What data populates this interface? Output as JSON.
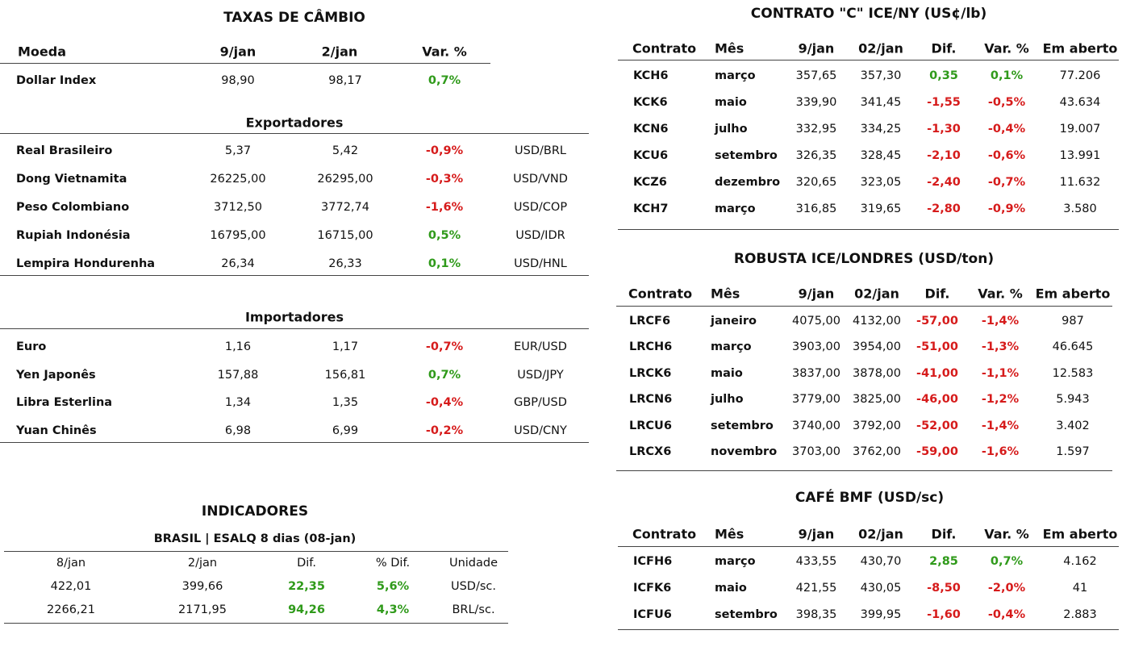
{
  "exchange_rates": {
    "title": "TAXAS DE CÂMBIO",
    "header": [
      "Moeda",
      "9/jan",
      "2/jan",
      "Var. %"
    ],
    "dollar_index": [
      "Dollar Index",
      "98,90",
      "98,17",
      "0,7%"
    ],
    "exporters": {
      "title": "Exportadores",
      "rows": [
        [
          "Real Brasileiro",
          "5,37",
          "5,42",
          "-0,9%",
          "USD/BRL"
        ],
        [
          "Dong Vietnamita",
          "26225,00",
          "26295,00",
          "-0,3%",
          "USD/VND"
        ],
        [
          "Peso Colombiano",
          "3712,50",
          "3772,74",
          "-1,6%",
          "USD/COP"
        ],
        [
          "Rupiah Indonésia",
          "16795,00",
          "16715,00",
          "0,5%",
          "USD/IDR"
        ],
        [
          "Lempira Hondurenha",
          "26,34",
          "26,33",
          "0,1%",
          "USD/HNL"
        ]
      ]
    },
    "importers": {
      "title": "Importadores",
      "rows": [
        [
          "Euro",
          "1,16",
          "1,17",
          "-0,7%",
          "EUR/USD"
        ],
        [
          "Yen Japonês",
          "157,88",
          "156,81",
          "0,7%",
          "USD/JPY"
        ],
        [
          "Libra Esterlina",
          "1,34",
          "1,35",
          "-0,4%",
          "GBP/USD"
        ],
        [
          "Yuan Chinês",
          "6,98",
          "6,99",
          "-0,2%",
          "USD/CNY"
        ]
      ]
    }
  },
  "indicators": {
    "title": "INDICADORES",
    "subtitle": "BRASIL | ESALQ 8 dias (08-jan)",
    "header": [
      "8/jan",
      "2/jan",
      "Dif.",
      "% Dif.",
      "Unidade"
    ],
    "rows": [
      [
        "422,01",
        "399,66",
        "22,35",
        "5,6%",
        "USD/sc."
      ],
      [
        "2266,21",
        "2171,95",
        "94,26",
        "4,3%",
        "BRL/sc."
      ]
    ]
  },
  "futures": [
    {
      "title": "CONTRATO \"C\" ICE/NY (US¢/lb)",
      "header": [
        "Contrato",
        "Mês",
        "9/jan",
        "02/jan",
        "Dif.",
        "Var. %",
        "Em aberto"
      ],
      "rows": [
        [
          "KCH6",
          "março",
          "357,65",
          "357,30",
          "0,35",
          "0,1%",
          "77.206"
        ],
        [
          "KCK6",
          "maio",
          "339,90",
          "341,45",
          "-1,55",
          "-0,5%",
          "43.634"
        ],
        [
          "KCN6",
          "julho",
          "332,95",
          "334,25",
          "-1,30",
          "-0,4%",
          "19.007"
        ],
        [
          "KCU6",
          "setembro",
          "326,35",
          "328,45",
          "-2,10",
          "-0,6%",
          "13.991"
        ],
        [
          "KCZ6",
          "dezembro",
          "320,65",
          "323,05",
          "-2,40",
          "-0,7%",
          "11.632"
        ],
        [
          "KCH7",
          "março",
          "316,85",
          "319,65",
          "-2,80",
          "-0,9%",
          "3.580"
        ]
      ]
    },
    {
      "title": "ROBUSTA ICE/LONDRES (USD/ton)",
      "header": [
        "Contrato",
        "Mês",
        "9/jan",
        "02/jan",
        "Dif.",
        "Var. %",
        "Em aberto"
      ],
      "rows": [
        [
          "LRCF6",
          "janeiro",
          "4075,00",
          "4132,00",
          "-57,00",
          "-1,4%",
          "987"
        ],
        [
          "LRCH6",
          "março",
          "3903,00",
          "3954,00",
          "-51,00",
          "-1,3%",
          "46.645"
        ],
        [
          "LRCK6",
          "maio",
          "3837,00",
          "3878,00",
          "-41,00",
          "-1,1%",
          "12.583"
        ],
        [
          "LRCN6",
          "julho",
          "3779,00",
          "3825,00",
          "-46,00",
          "-1,2%",
          "5.943"
        ],
        [
          "LRCU6",
          "setembro",
          "3740,00",
          "3792,00",
          "-52,00",
          "-1,4%",
          "3.402"
        ],
        [
          "LRCX6",
          "novembro",
          "3703,00",
          "3762,00",
          "-59,00",
          "-1,6%",
          "1.597"
        ]
      ]
    },
    {
      "title": "CAFÉ BMF (USD/sc)",
      "header": [
        "Contrato",
        "Mês",
        "9/jan",
        "02/jan",
        "Dif.",
        "Var. %",
        "Em aberto"
      ],
      "rows": [
        [
          "ICFH6",
          "março",
          "433,55",
          "430,70",
          "2,85",
          "0,7%",
          "4.162"
        ],
        [
          "ICFK6",
          "maio",
          "421,55",
          "430,05",
          "-8,50",
          "-2,0%",
          "41"
        ],
        [
          "ICFU6",
          "setembro",
          "398,35",
          "399,95",
          "-1,60",
          "-0,4%",
          "2.883"
        ]
      ]
    }
  ]
}
